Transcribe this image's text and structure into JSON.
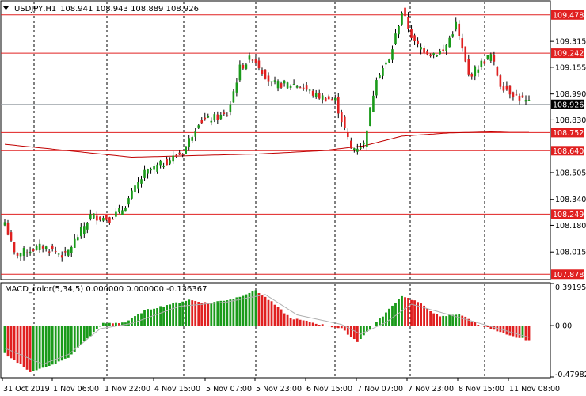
{
  "header": {
    "symbol": "USDJPY,H1",
    "ohlc": "108.941 108.943 108.889 108.926"
  },
  "macd_label": "MACD_color(5,34,5) 0.000000 0.000000 -0.136367",
  "colors": {
    "bull": "#1a9a1a",
    "bear": "#e02020",
    "level_line": "#e02020",
    "ma_line": "#c00000",
    "grid": "#000000"
  },
  "chart_data": [
    {
      "type": "candlestick",
      "title": "USDJPY,H1",
      "ylim": [
        107.85,
        109.56
      ],
      "y_ticks": [
        "109.315",
        "109.155",
        "108.990",
        "108.830",
        "108.505",
        "108.340",
        "108.180",
        "108.015"
      ],
      "x_labels": [
        "31 Oct 2019",
        "1 Nov 06:00",
        "1 Nov 22:00",
        "4 Nov 15:00",
        "5 Nov 07:00",
        "5 Nov 23:00",
        "6 Nov 15:00",
        "7 Nov 07:00",
        "7 Nov 23:00",
        "8 Nov 15:00",
        "11 Nov 08:00"
      ],
      "levels": [
        {
          "label": "109.478",
          "value": 109.478
        },
        {
          "label": "109.242",
          "value": 109.242
        },
        {
          "label": "108.752",
          "value": 108.752
        },
        {
          "label": "108.640",
          "value": 108.64
        },
        {
          "label": "108.249",
          "value": 108.249
        },
        {
          "label": "107.878",
          "value": 107.878
        }
      ],
      "current_price": {
        "label": "108.926",
        "value": 108.926
      },
      "path_anchors": [
        {
          "i": 0,
          "p": 108.2
        },
        {
          "i": 3,
          "p": 108.0
        },
        {
          "i": 12,
          "p": 108.05
        },
        {
          "i": 19,
          "p": 107.99
        },
        {
          "i": 27,
          "p": 108.24
        },
        {
          "i": 33,
          "p": 108.22
        },
        {
          "i": 37,
          "p": 108.28
        },
        {
          "i": 44,
          "p": 108.5
        },
        {
          "i": 56,
          "p": 108.63
        },
        {
          "i": 61,
          "p": 108.82
        },
        {
          "i": 70,
          "p": 108.86
        },
        {
          "i": 74,
          "p": 109.15
        },
        {
          "i": 78,
          "p": 109.22
        },
        {
          "i": 84,
          "p": 109.05
        },
        {
          "i": 92,
          "p": 109.05
        },
        {
          "i": 98,
          "p": 108.98
        },
        {
          "i": 104,
          "p": 108.95
        },
        {
          "i": 109,
          "p": 108.65
        },
        {
          "i": 113,
          "p": 108.68
        },
        {
          "i": 117,
          "p": 109.1
        },
        {
          "i": 121,
          "p": 109.2
        },
        {
          "i": 125,
          "p": 109.5
        },
        {
          "i": 129,
          "p": 109.3
        },
        {
          "i": 134,
          "p": 109.24
        },
        {
          "i": 138,
          "p": 109.25
        },
        {
          "i": 142,
          "p": 109.42
        },
        {
          "i": 146,
          "p": 109.1
        },
        {
          "i": 150,
          "p": 109.18
        },
        {
          "i": 153,
          "p": 109.23
        },
        {
          "i": 156,
          "p": 109.05
        },
        {
          "i": 160,
          "p": 108.99
        },
        {
          "i": 165,
          "p": 108.93
        }
      ],
      "ma_anchors": [
        {
          "i": 0,
          "p": 108.68
        },
        {
          "i": 20,
          "p": 108.64
        },
        {
          "i": 40,
          "p": 108.6
        },
        {
          "i": 60,
          "p": 108.61
        },
        {
          "i": 80,
          "p": 108.62
        },
        {
          "i": 100,
          "p": 108.64
        },
        {
          "i": 113,
          "p": 108.67
        },
        {
          "i": 125,
          "p": 108.73
        },
        {
          "i": 140,
          "p": 108.75
        },
        {
          "i": 160,
          "p": 108.76
        },
        {
          "i": 165,
          "p": 108.76
        }
      ],
      "bar_count": 166
    },
    {
      "type": "bar",
      "title": "MACD_color(5,34,5) 0.000000 0.000000 -0.136367",
      "ylim": [
        -0.479827,
        0.391957
      ],
      "y_ticks": [
        "0.391957",
        "0.00",
        "-0.479827"
      ],
      "histogram_anchors": [
        {
          "i": 0,
          "v": -0.26
        },
        {
          "i": 8,
          "v": -0.43
        },
        {
          "i": 14,
          "v": -0.38
        },
        {
          "i": 20,
          "v": -0.3
        },
        {
          "i": 26,
          "v": -0.12
        },
        {
          "i": 31,
          "v": 0.02
        },
        {
          "i": 38,
          "v": 0.03
        },
        {
          "i": 44,
          "v": 0.14
        },
        {
          "i": 52,
          "v": 0.2
        },
        {
          "i": 58,
          "v": 0.24
        },
        {
          "i": 64,
          "v": 0.21
        },
        {
          "i": 72,
          "v": 0.25
        },
        {
          "i": 79,
          "v": 0.33
        },
        {
          "i": 84,
          "v": 0.22
        },
        {
          "i": 90,
          "v": 0.07
        },
        {
          "i": 98,
          "v": 0.02
        },
        {
          "i": 106,
          "v": -0.03
        },
        {
          "i": 111,
          "v": -0.15
        },
        {
          "i": 116,
          "v": 0.0
        },
        {
          "i": 120,
          "v": 0.12
        },
        {
          "i": 125,
          "v": 0.28
        },
        {
          "i": 130,
          "v": 0.22
        },
        {
          "i": 137,
          "v": 0.08
        },
        {
          "i": 143,
          "v": 0.11
        },
        {
          "i": 149,
          "v": 0.01
        },
        {
          "i": 152,
          "v": -0.02
        },
        {
          "i": 158,
          "v": -0.09
        },
        {
          "i": 165,
          "v": -0.136
        }
      ],
      "signal_anchors": [
        {
          "i": 0,
          "v": -0.21
        },
        {
          "i": 12,
          "v": -0.36
        },
        {
          "i": 20,
          "v": -0.27
        },
        {
          "i": 30,
          "v": -0.03
        },
        {
          "i": 40,
          "v": 0.02
        },
        {
          "i": 55,
          "v": 0.18
        },
        {
          "i": 70,
          "v": 0.22
        },
        {
          "i": 82,
          "v": 0.29
        },
        {
          "i": 92,
          "v": 0.1
        },
        {
          "i": 106,
          "v": 0.01
        },
        {
          "i": 112,
          "v": -0.08
        },
        {
          "i": 120,
          "v": 0.03
        },
        {
          "i": 128,
          "v": 0.2
        },
        {
          "i": 140,
          "v": 0.1
        },
        {
          "i": 152,
          "v": 0.0
        },
        {
          "i": 165,
          "v": -0.11
        }
      ]
    }
  ]
}
